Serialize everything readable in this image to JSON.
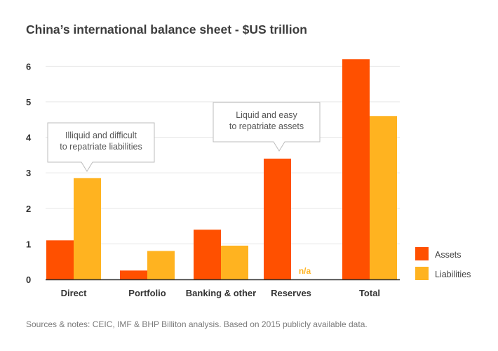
{
  "chart_data": {
    "type": "bar",
    "title": "China’s international balance sheet - $US trillion",
    "categories": [
      "Direct",
      "Portfolio",
      "Banking & other",
      "Reserves",
      "Total"
    ],
    "series": [
      {
        "name": "Assets",
        "color": "#ff5000",
        "values": [
          1.1,
          0.25,
          1.4,
          3.4,
          6.2
        ],
        "labels": [
          null,
          null,
          null,
          null,
          null
        ]
      },
      {
        "name": "Liabilities",
        "color": "#ffb320",
        "values": [
          2.85,
          0.8,
          0.95,
          null,
          4.6
        ],
        "labels": [
          null,
          null,
          null,
          "n/a",
          null
        ]
      }
    ],
    "yticks": [
      0,
      1,
      2,
      3,
      4,
      5,
      6
    ],
    "ylim": [
      0,
      6.5
    ],
    "grid": true,
    "legend": "bottom-right",
    "annotations": [
      {
        "text_lines": [
          "Illiquid and difficult",
          "to repatriate liabilities"
        ],
        "category": "Direct"
      },
      {
        "text_lines": [
          "Liquid and easy",
          "to repatriate assets"
        ],
        "category": "Reserves"
      }
    ]
  },
  "footnote": "Sources & notes: CEIC, IMF & BHP Billiton analysis. Based on 2015 publicly available data."
}
